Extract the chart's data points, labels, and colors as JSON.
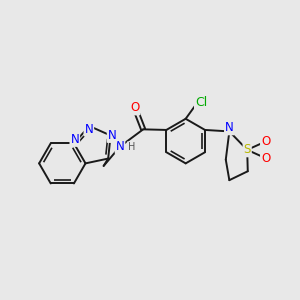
{
  "background_color": "#e8e8e8",
  "bond_color": "#1a1a1a",
  "bond_width": 1.4,
  "atom_colors": {
    "N": "#0000ff",
    "O": "#ff0000",
    "S": "#b8b800",
    "Cl": "#00aa00",
    "H": "#555555"
  },
  "font_size": 8.5,
  "fig_size": [
    3.0,
    3.0
  ],
  "dpi": 100,
  "xlim": [
    0,
    10
  ],
  "ylim": [
    0,
    10
  ]
}
